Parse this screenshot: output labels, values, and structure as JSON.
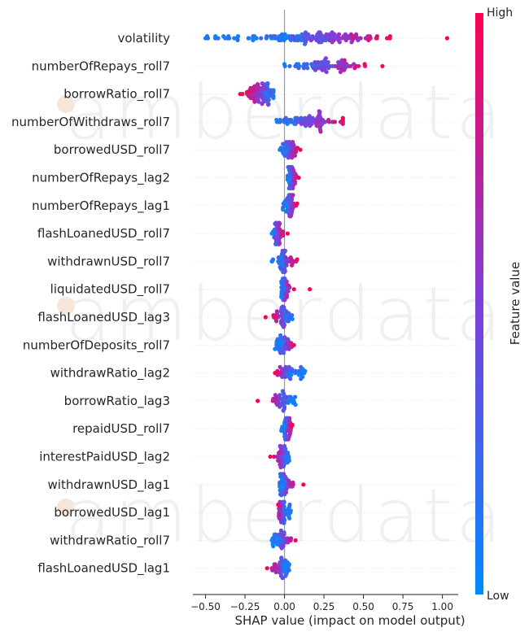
{
  "watermark_text": "amberdata",
  "chart_data": {
    "type": "scatter",
    "subtype": "shap-beeswarm",
    "xlabel": "SHAP value (impact on model output)",
    "xlim": [
      -0.58,
      1.1
    ],
    "xticks": [
      -0.5,
      -0.25,
      0.0,
      0.25,
      0.5,
      0.75,
      1.0
    ],
    "xtick_labels": [
      "−0.50",
      "−0.25",
      "0.00",
      "0.25",
      "0.50",
      "0.75",
      "1.00"
    ],
    "zero_line": true,
    "colorbar": {
      "label": "Feature value",
      "high": "High",
      "low": "Low",
      "low_color": "#008afb",
      "high_color": "#ff0052"
    },
    "features": [
      {
        "name": "volatility",
        "min": -0.5,
        "max": 1.03,
        "center": 0.3,
        "spread": 0.16,
        "lowFrac": 0.35,
        "highDir": 1
      },
      {
        "name": "numberOfRepays_roll7",
        "min": 0.0,
        "max": 0.62,
        "center": 0.3,
        "spread": 0.1,
        "lowFrac": 0.12,
        "highDir": 1
      },
      {
        "name": "borrowRatio_roll7",
        "min": -0.28,
        "max": -0.07,
        "center": -0.15,
        "spread": 0.04,
        "lowFrac": 0.2,
        "highDir": -1
      },
      {
        "name": "numberOfWithdraws_roll7",
        "min": -0.05,
        "max": 0.37,
        "center": 0.18,
        "spread": 0.09,
        "lowFrac": 0.15,
        "highDir": 1
      },
      {
        "name": "borrowedUSD_roll7",
        "min": -0.03,
        "max": 0.1,
        "center": 0.04,
        "spread": 0.02,
        "lowFrac": 0.3,
        "highDir": 1
      },
      {
        "name": "numberOfRepays_lag2",
        "min": 0.02,
        "max": 0.09,
        "center": 0.05,
        "spread": 0.015,
        "lowFrac": 0.3,
        "highDir": 1
      },
      {
        "name": "numberOfRepays_lag1",
        "min": -0.01,
        "max": 0.08,
        "center": 0.04,
        "spread": 0.015,
        "lowFrac": 0.3,
        "highDir": 1
      },
      {
        "name": "flashLoanedUSD_roll7",
        "min": -0.08,
        "max": 0.02,
        "center": -0.04,
        "spread": 0.015,
        "lowFrac": 0.1,
        "highDir": 1
      },
      {
        "name": "withdrawnUSD_roll7",
        "min": -0.08,
        "max": 0.08,
        "center": 0.01,
        "spread": 0.025,
        "lowFrac": 0.4,
        "highDir": 1
      },
      {
        "name": "liquidatedUSD_roll7",
        "min": -0.02,
        "max": 0.16,
        "center": 0.01,
        "spread": 0.02,
        "lowFrac": 0.6,
        "highDir": 1
      },
      {
        "name": "flashLoanedUSD_lag3",
        "min": -0.12,
        "max": 0.05,
        "center": -0.02,
        "spread": 0.03,
        "lowFrac": 0.4,
        "highDir": -1
      },
      {
        "name": "numberOfDeposits_roll7",
        "min": -0.06,
        "max": 0.06,
        "center": 0.01,
        "spread": 0.025,
        "lowFrac": 0.45,
        "highDir": 1
      },
      {
        "name": "withdrawRatio_lag2",
        "min": -0.06,
        "max": 0.13,
        "center": 0.0,
        "spread": 0.025,
        "lowFrac": 0.6,
        "highDir": -1
      },
      {
        "name": "borrowRatio_lag3",
        "min": -0.17,
        "max": 0.07,
        "center": -0.03,
        "spread": 0.03,
        "lowFrac": 0.45,
        "highDir": -1
      },
      {
        "name": "repaidUSD_roll7",
        "min": -0.02,
        "max": 0.05,
        "center": 0.02,
        "spread": 0.012,
        "lowFrac": 0.3,
        "highDir": 1
      },
      {
        "name": "interestPaidUSD_lag2",
        "min": -0.09,
        "max": 0.03,
        "center": -0.02,
        "spread": 0.02,
        "lowFrac": 0.3,
        "highDir": -1
      },
      {
        "name": "withdrawnUSD_lag1",
        "min": -0.03,
        "max": 0.12,
        "center": 0.02,
        "spread": 0.025,
        "lowFrac": 0.45,
        "highDir": 1
      },
      {
        "name": "borrowedUSD_lag1",
        "min": -0.04,
        "max": 0.04,
        "center": -0.02,
        "spread": 0.012,
        "lowFrac": 0.4,
        "highDir": -1
      },
      {
        "name": "withdrawRatio_roll7",
        "min": -0.08,
        "max": 0.07,
        "center": 0.0,
        "spread": 0.02,
        "lowFrac": 0.55,
        "highDir": 1
      },
      {
        "name": "flashLoanedUSD_lag1",
        "min": -0.11,
        "max": 0.03,
        "center": -0.03,
        "spread": 0.025,
        "lowFrac": 0.4,
        "highDir": -1
      }
    ]
  }
}
